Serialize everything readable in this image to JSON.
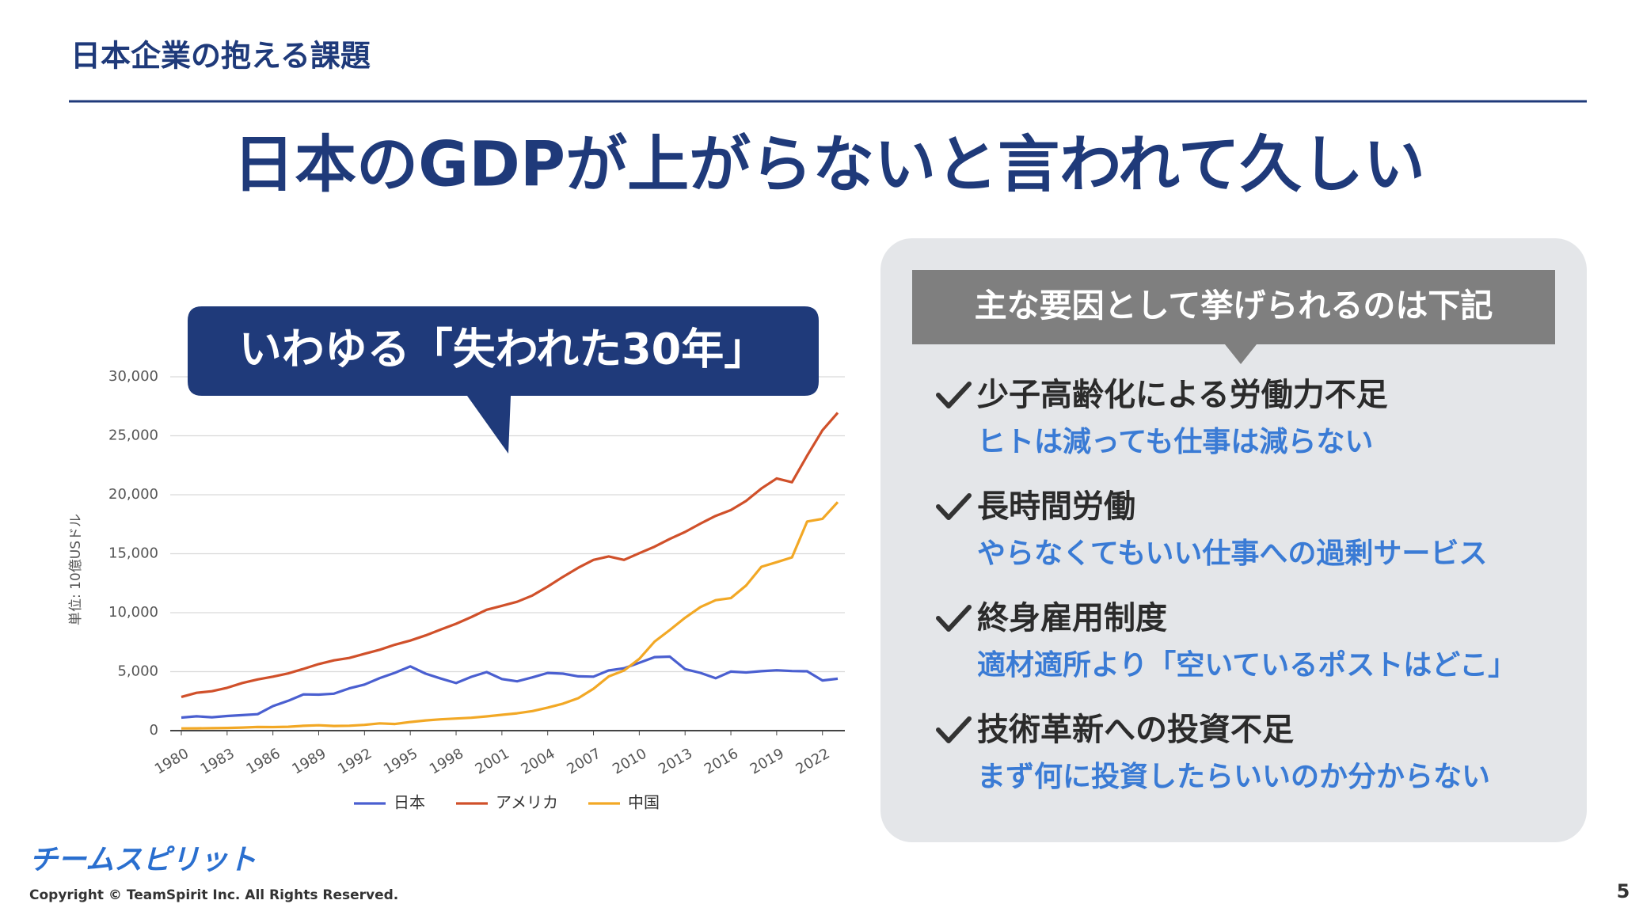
{
  "header": {
    "title": "日本企業の抱える課題"
  },
  "headline": "日本のGDPが上がらないと言われて久しい",
  "callout": "いわゆる「失われた30年」",
  "chart_data": {
    "type": "line",
    "y_label": "単位: 10億USドル",
    "x": [
      1980,
      1981,
      1982,
      1983,
      1984,
      1985,
      1986,
      1987,
      1988,
      1989,
      1990,
      1991,
      1992,
      1993,
      1994,
      1995,
      1996,
      1997,
      1998,
      1999,
      2000,
      2001,
      2002,
      2003,
      2004,
      2005,
      2006,
      2007,
      2008,
      2009,
      2010,
      2011,
      2012,
      2013,
      2014,
      2015,
      2016,
      2017,
      2018,
      2019,
      2020,
      2021,
      2022,
      2023
    ],
    "xlim": [
      1980,
      2023
    ],
    "xticks": [
      1980,
      1983,
      1986,
      1989,
      1992,
      1995,
      1998,
      2001,
      2004,
      2007,
      2010,
      2013,
      2016,
      2019,
      2022
    ],
    "ylim": [
      0,
      30000
    ],
    "yticks": [
      0,
      {
        "value": 5000,
        "label": "5,000"
      },
      {
        "value": 10000,
        "label": "10,000"
      },
      {
        "value": 15000,
        "label": "15,000"
      },
      {
        "value": 20000,
        "label": "20,000"
      },
      {
        "value": 25000,
        "label": "25,000"
      },
      {
        "value": 30000,
        "label": "30,000"
      }
    ],
    "grid": true,
    "legend": "bottom",
    "series": [
      {
        "name": "日本",
        "color": "#4a5fd0",
        "values": [
          1105,
          1218,
          1134,
          1243,
          1318,
          1399,
          2079,
          2532,
          3072,
          3054,
          3133,
          3584,
          3909,
          4454,
          4907,
          5449,
          4834,
          4415,
          4033,
          4562,
          4968,
          4374,
          4182,
          4519,
          4893,
          4831,
          4601,
          4579,
          5106,
          5289,
          5759,
          6233,
          6272,
          5212,
          4897,
          4445,
          5004,
          4931,
          5041,
          5118,
          5055,
          5034,
          4256,
          4400
        ]
      },
      {
        "name": "アメリカ",
        "color": "#d0502a",
        "values": [
          2857,
          3207,
          3343,
          3634,
          4037,
          4339,
          4580,
          4855,
          5236,
          5641,
          5963,
          6158,
          6520,
          6859,
          7287,
          7639,
          8073,
          8577,
          9062,
          9631,
          10251,
          10582,
          10929,
          11456,
          12217,
          13039,
          13815,
          14474,
          14770,
          14478,
          15049,
          15600,
          16254,
          16843,
          17551,
          18206,
          18695,
          19477,
          20533,
          21381,
          21060,
          23315,
          25463,
          26950
        ]
      },
      {
        "name": "中国",
        "color": "#f2a825",
        "values": [
          191,
          196,
          205,
          231,
          260,
          309,
          301,
          327,
          408,
          457,
          395,
          414,
          493,
          619,
          564,
          734,
          864,
          962,
          1029,
          1094,
          1211,
          1339,
          1471,
          1660,
          1955,
          2286,
          2752,
          3550,
          4594,
          5102,
          6087,
          7552,
          8532,
          9570,
          10476,
          11062,
          11233,
          12310,
          13895,
          14280,
          14688,
          17734,
          17963,
          19374
        ]
      }
    ]
  },
  "panel": {
    "title": "主な要因として挙げられるのは下記",
    "items": [
      {
        "heading": "少子高齢化による労働力不足",
        "detail": "ヒトは減っても仕事は減らない"
      },
      {
        "heading": "長時間労働",
        "detail": "やらなくてもいい仕事への過剰サービス"
      },
      {
        "heading": "終身雇用制度",
        "detail": "適材適所より「空いているポストはどこ」"
      },
      {
        "heading": "技術革新への投資不足",
        "detail": "まず何に投資したらいいのか分からない"
      }
    ]
  },
  "footer": {
    "logo": "チームスピリット",
    "copyright": "Copyright © TeamSpirit Inc. All Rights Reserved.",
    "page": "5"
  }
}
